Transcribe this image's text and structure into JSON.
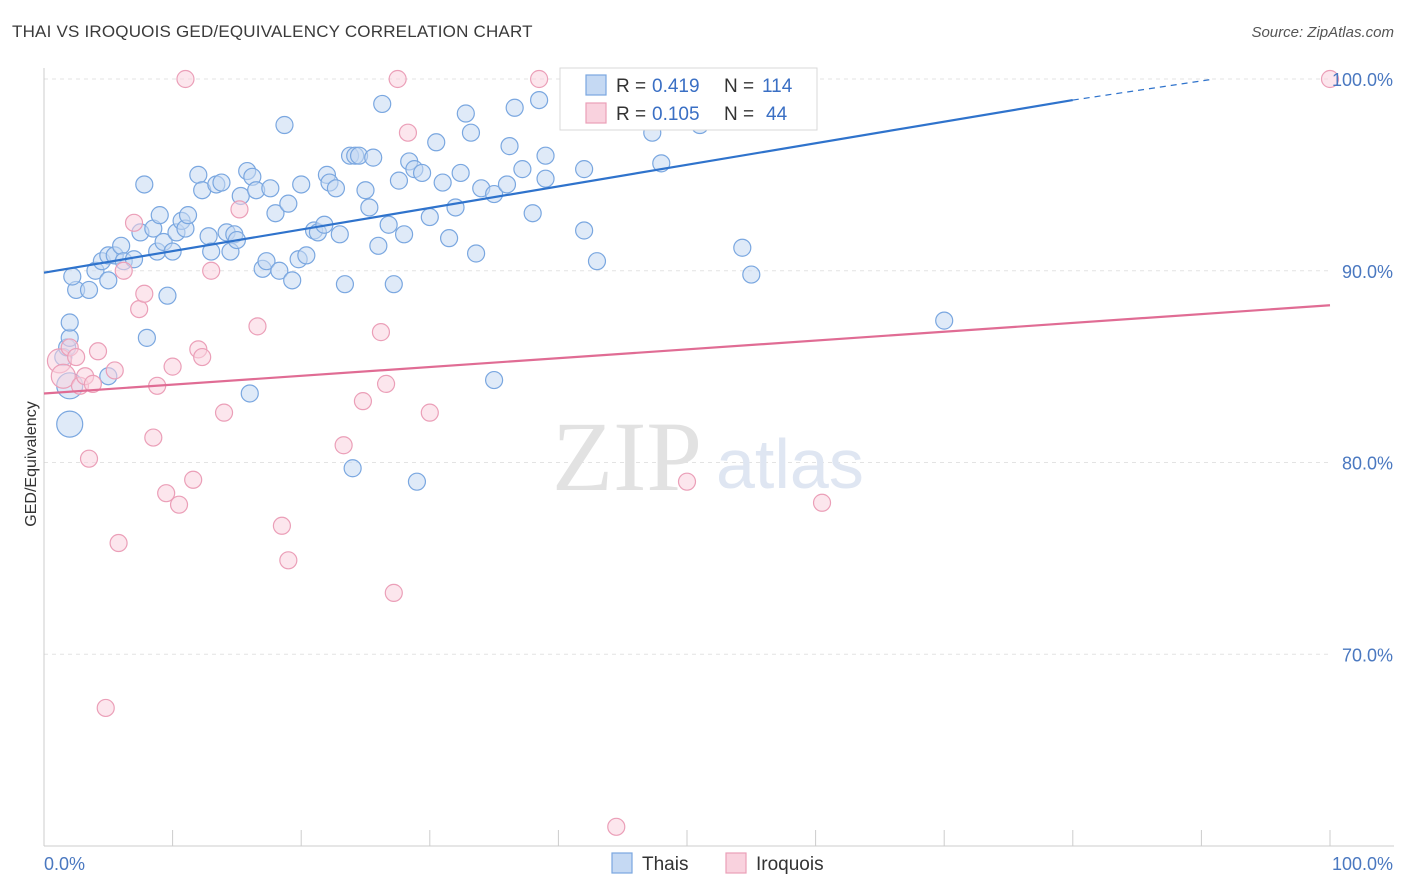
{
  "title": "THAI VS IROQUOIS GED/EQUIVALENCY CORRELATION CHART",
  "source": "Source: ZipAtlas.com",
  "watermark": {
    "zip": "ZIP",
    "atlas": "atlas"
  },
  "chart_data": {
    "type": "scatter",
    "xlabel": "",
    "ylabel": "GED/Equivalency",
    "xlim": [
      0,
      100
    ],
    "ylim": [
      60,
      100
    ],
    "x_tick_labels": [
      {
        "value": 0,
        "label": "0.0%"
      },
      {
        "value": 100,
        "label": "100.0%"
      }
    ],
    "y_ticks": [
      {
        "value": 100,
        "label": "100.0%"
      },
      {
        "value": 90,
        "label": "90.0%"
      },
      {
        "value": 80,
        "label": "80.0%"
      },
      {
        "value": 70,
        "label": "70.0%"
      }
    ],
    "grid": true,
    "legend_position": "top-center",
    "stats": [
      {
        "r_label": "R =",
        "r_value": "0.419",
        "n_label": "N =",
        "n_value": "114"
      },
      {
        "r_label": "R =",
        "r_value": "0.105",
        "n_label": "N =",
        "n_value": "44"
      }
    ],
    "series": [
      {
        "name": "Thais",
        "color": "#7aa7e0",
        "fill": "#c5d9f3",
        "line_color": "#2f73cc",
        "trend": {
          "x0": 0,
          "y0": 89.9,
          "x1": 80,
          "y1": 98.9,
          "dash_to_x": 91,
          "dash_to_y": 100
        },
        "points": [
          [
            2,
            84
          ],
          [
            2,
            82
          ],
          [
            1.5,
            85.5
          ],
          [
            1.8,
            86
          ],
          [
            2,
            86.5
          ],
          [
            2,
            87.3
          ],
          [
            2.5,
            89
          ],
          [
            2.2,
            89.7
          ],
          [
            3.5,
            89
          ],
          [
            4,
            90
          ],
          [
            4.5,
            90.5
          ],
          [
            5,
            90.8
          ],
          [
            5,
            89.5
          ],
          [
            5.5,
            90.8
          ],
          [
            6,
            91.3
          ],
          [
            6.2,
            90.5
          ],
          [
            7,
            90.6
          ],
          [
            7.5,
            92
          ],
          [
            7.8,
            94.5
          ],
          [
            8,
            86.5
          ],
          [
            8.5,
            92.2
          ],
          [
            8.8,
            91
          ],
          [
            9,
            92.9
          ],
          [
            9.3,
            91.5
          ],
          [
            9.6,
            88.7
          ],
          [
            10,
            91
          ],
          [
            10.3,
            92
          ],
          [
            10.7,
            92.6
          ],
          [
            11,
            92.2
          ],
          [
            11.2,
            92.9
          ],
          [
            12,
            95
          ],
          [
            12.3,
            94.2
          ],
          [
            12.8,
            91.8
          ],
          [
            13,
            91
          ],
          [
            13.4,
            94.5
          ],
          [
            13.8,
            94.6
          ],
          [
            14.2,
            92
          ],
          [
            14.5,
            91
          ],
          [
            14.8,
            91.9
          ],
          [
            15,
            91.6
          ],
          [
            15.3,
            93.9
          ],
          [
            15.8,
            95.2
          ],
          [
            16.2,
            94.9
          ],
          [
            16.5,
            94.2
          ],
          [
            17,
            90.1
          ],
          [
            17.3,
            90.5
          ],
          [
            17.6,
            94.3
          ],
          [
            18,
            93
          ],
          [
            18.3,
            90
          ],
          [
            18.7,
            97.6
          ],
          [
            19,
            93.5
          ],
          [
            19.3,
            89.5
          ],
          [
            19.8,
            90.6
          ],
          [
            20,
            94.5
          ],
          [
            20.4,
            90.8
          ],
          [
            21,
            92.1
          ],
          [
            21.3,
            92
          ],
          [
            21.8,
            92.4
          ],
          [
            22,
            95
          ],
          [
            22.2,
            94.6
          ],
          [
            22.7,
            94.3
          ],
          [
            23,
            91.9
          ],
          [
            23.4,
            89.3
          ],
          [
            23.8,
            96
          ],
          [
            24.2,
            96
          ],
          [
            24.5,
            96
          ],
          [
            25,
            94.2
          ],
          [
            25.3,
            93.3
          ],
          [
            25.6,
            95.9
          ],
          [
            26,
            91.3
          ],
          [
            26.3,
            98.7
          ],
          [
            26.8,
            92.4
          ],
          [
            27.2,
            89.3
          ],
          [
            27.6,
            94.7
          ],
          [
            28,
            91.9
          ],
          [
            28.4,
            95.7
          ],
          [
            28.8,
            95.3
          ],
          [
            29.4,
            95.1
          ],
          [
            30,
            92.8
          ],
          [
            30.5,
            96.7
          ],
          [
            31,
            94.6
          ],
          [
            31.5,
            91.7
          ],
          [
            32,
            93.3
          ],
          [
            32.4,
            95.1
          ],
          [
            32.8,
            98.2
          ],
          [
            33.2,
            97.2
          ],
          [
            33.6,
            90.9
          ],
          [
            34,
            94.3
          ],
          [
            35,
            94
          ],
          [
            36,
            94.5
          ],
          [
            36.2,
            96.5
          ],
          [
            36.6,
            98.5
          ],
          [
            37.2,
            95.3
          ],
          [
            38,
            93
          ],
          [
            38.5,
            98.9
          ],
          [
            39,
            96
          ],
          [
            39,
            94.8
          ],
          [
            42,
            95.3
          ],
          [
            42,
            92.1
          ],
          [
            43,
            90.5
          ],
          [
            47,
            97.8
          ],
          [
            47.3,
            97.2
          ],
          [
            48,
            95.6
          ],
          [
            51,
            97.6
          ],
          [
            54.3,
            91.2
          ],
          [
            55,
            89.8
          ],
          [
            70,
            87.4
          ],
          [
            5,
            84.5
          ],
          [
            16,
            83.6
          ],
          [
            35,
            84.3
          ],
          [
            24,
            79.7
          ],
          [
            29,
            79
          ]
        ]
      },
      {
        "name": "Iroquois",
        "color": "#eb9fb8",
        "fill": "#f9d2de",
        "line_color": "#e06c94",
        "trend": {
          "x0": 0,
          "y0": 83.6,
          "x1": 100,
          "y1": 88.2
        },
        "points": [
          [
            1.2,
            85.3
          ],
          [
            1.5,
            84.5
          ],
          [
            2,
            86
          ],
          [
            2.5,
            85.5
          ],
          [
            2.8,
            84
          ],
          [
            3.2,
            84.5
          ],
          [
            3.5,
            80.2
          ],
          [
            4.2,
            85.8
          ],
          [
            5.5,
            84.8
          ],
          [
            5.8,
            75.8
          ],
          [
            6.2,
            90
          ],
          [
            7,
            92.5
          ],
          [
            7.4,
            88
          ],
          [
            7.8,
            88.8
          ],
          [
            8.5,
            81.3
          ],
          [
            8.8,
            84
          ],
          [
            9.5,
            78.4
          ],
          [
            10,
            85
          ],
          [
            10.5,
            77.8
          ],
          [
            11,
            100
          ],
          [
            11.6,
            79.1
          ],
          [
            12,
            85.9
          ],
          [
            12.3,
            85.5
          ],
          [
            13,
            90
          ],
          [
            14,
            82.6
          ],
          [
            15.2,
            93.2
          ],
          [
            16.6,
            87.1
          ],
          [
            18.5,
            76.7
          ],
          [
            19,
            74.9
          ],
          [
            23.3,
            80.9
          ],
          [
            24.8,
            83.2
          ],
          [
            26.2,
            86.8
          ],
          [
            26.6,
            84.1
          ],
          [
            27.2,
            73.2
          ],
          [
            27.5,
            100
          ],
          [
            28.3,
            97.2
          ],
          [
            30,
            82.6
          ],
          [
            38.5,
            100
          ],
          [
            44.5,
            61
          ],
          [
            50,
            79
          ],
          [
            60.5,
            77.9
          ],
          [
            100,
            100
          ],
          [
            4.8,
            67.2
          ],
          [
            3.8,
            84.1
          ]
        ]
      }
    ]
  }
}
